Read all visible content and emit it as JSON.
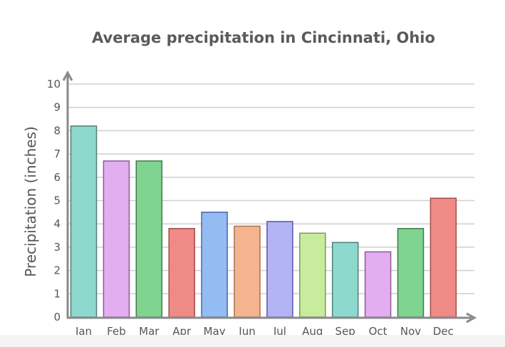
{
  "chart_data": {
    "type": "bar",
    "title": "Average precipitation in Cincinnati, Ohio",
    "xlabel": "",
    "ylabel": "Precipitation (inches)",
    "categories": [
      "Jan",
      "Feb",
      "Mar",
      "Apr",
      "May",
      "Jun",
      "Jul",
      "Aug",
      "Sep",
      "Oct",
      "Nov",
      "Dec"
    ],
    "values": [
      8.2,
      6.7,
      6.7,
      3.8,
      4.5,
      3.9,
      4.1,
      3.6,
      3.2,
      2.8,
      3.8,
      5.1
    ],
    "ylim": [
      0,
      10
    ],
    "yticks": [
      "0",
      "1",
      "2",
      "3",
      "4",
      "5",
      "6",
      "7",
      "8",
      "9",
      "10"
    ],
    "grid": true,
    "legend": "none",
    "bar_colors": [
      "#8ed9cd",
      "#e2aef1",
      "#7fd490",
      "#ef8a86",
      "#93bcf3",
      "#f4b58e",
      "#b3b4f3",
      "#c8ec9e",
      "#8ed9cd",
      "#e2aef1",
      "#7fd490",
      "#ef8a86"
    ],
    "bar_edge_colors": [
      "#4f7e77",
      "#8b5a99",
      "#3f7a4c",
      "#a24e4b",
      "#4d63a8",
      "#a8704d",
      "#5756a8",
      "#7a9a55",
      "#4f7e77",
      "#8b5a99",
      "#3f7a4c",
      "#a24e4b"
    ]
  }
}
